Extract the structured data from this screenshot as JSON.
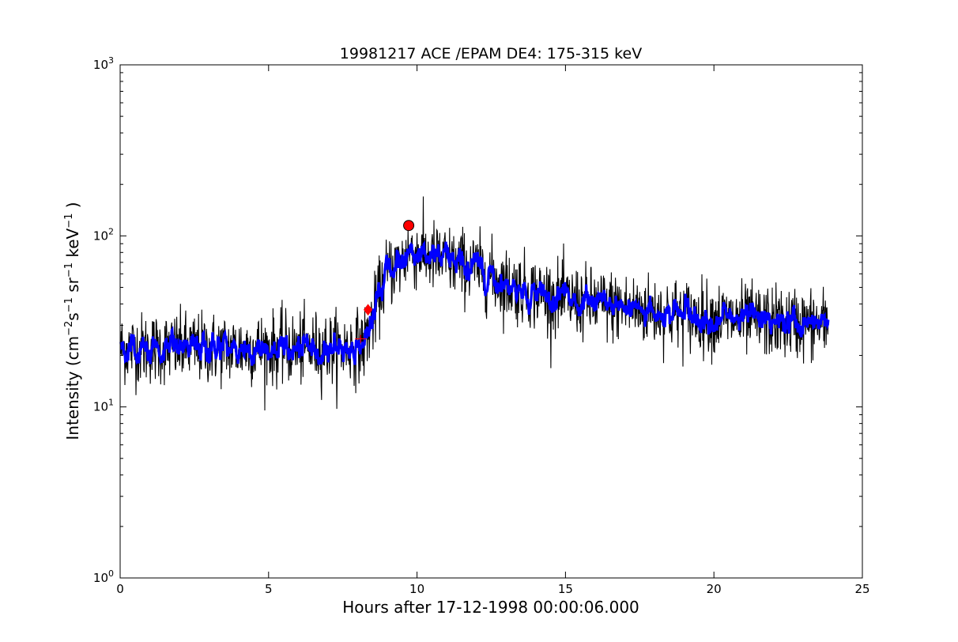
{
  "chart_data": {
    "type": "line",
    "title": "19981217 ACE /EPAM DE4: 175-315 keV",
    "xlabel": "Hours after 17-12-1998 00:00:06.000",
    "ylabel_parts": {
      "prefix": "Intensity (cm",
      "exp1": "−2",
      "s": "s",
      "exp2": "−1",
      "sr": " sr",
      "exp3": "−1",
      "kev": " keV",
      "exp4": "−1",
      "suffix": " )"
    },
    "xlim": [
      0,
      25
    ],
    "ylim": [
      1,
      1000
    ],
    "yscale": "log",
    "grid": false,
    "xticks": [
      {
        "value": 0,
        "label": "0"
      },
      {
        "value": 5,
        "label": "5"
      },
      {
        "value": 10,
        "label": "10"
      },
      {
        "value": 15,
        "label": "15"
      },
      {
        "value": 20,
        "label": "20"
      },
      {
        "value": 25,
        "label": "25"
      }
    ],
    "yticks": [
      {
        "value": 1,
        "base": "10",
        "exp": "0"
      },
      {
        "value": 10,
        "base": "10",
        "exp": "1"
      },
      {
        "value": 100,
        "base": "10",
        "exp": "2"
      },
      {
        "value": 1000,
        "base": "10",
        "exp": "3"
      }
    ],
    "series": [
      {
        "role": "raw",
        "color": "#000000",
        "x_range": [
          0.02,
          23.85
        ],
        "profile": [
          [
            0,
            22
          ],
          [
            7.5,
            22
          ],
          [
            8.2,
            23
          ],
          [
            8.5,
            32
          ],
          [
            8.8,
            50
          ],
          [
            9.0,
            62
          ],
          [
            9.5,
            70
          ],
          [
            9.7,
            82
          ],
          [
            10.5,
            75
          ],
          [
            12.0,
            65
          ],
          [
            13.0,
            52
          ],
          [
            15.0,
            42
          ],
          [
            17.0,
            38
          ],
          [
            20.0,
            33
          ],
          [
            23.85,
            30
          ]
        ]
      },
      {
        "role": "smoothed",
        "color": "#0000ff",
        "x_range": [
          0.02,
          23.85
        ],
        "profile": [
          [
            0,
            22
          ],
          [
            7.5,
            22
          ],
          [
            8.2,
            23
          ],
          [
            8.5,
            32
          ],
          [
            8.8,
            50
          ],
          [
            9.0,
            62
          ],
          [
            9.5,
            70
          ],
          [
            9.7,
            82
          ],
          [
            10.5,
            75
          ],
          [
            12.0,
            65
          ],
          [
            13.0,
            52
          ],
          [
            15.0,
            42
          ],
          [
            17.0,
            38
          ],
          [
            20.0,
            33
          ],
          [
            23.85,
            30
          ]
        ]
      }
    ],
    "markers": [
      {
        "type": "cross",
        "x": 8.1,
        "y": 25,
        "color": "#ff0000"
      },
      {
        "type": "diamond",
        "x": 8.35,
        "y": 37,
        "color": "#ff0000"
      },
      {
        "type": "circle",
        "x": 9.72,
        "y": 115,
        "color": "#ff0000"
      }
    ]
  }
}
